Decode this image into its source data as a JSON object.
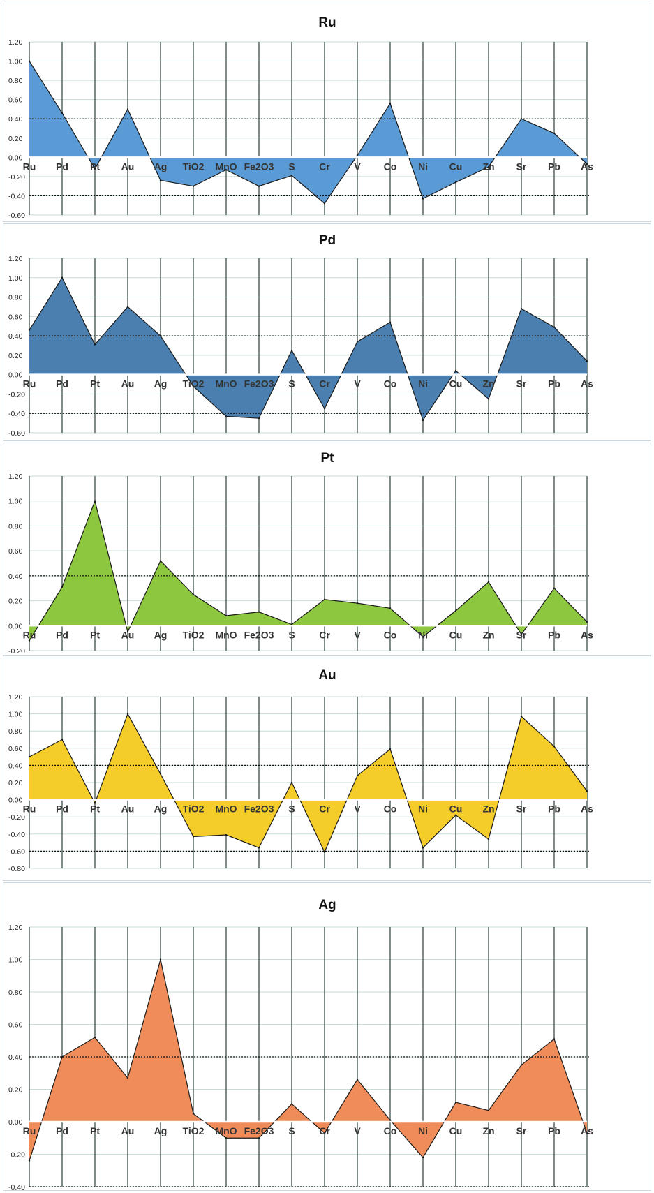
{
  "chart_data": [
    {
      "type": "area",
      "title": "Ru",
      "color": "#5b9bd5",
      "categories": [
        "Ru",
        "Pd",
        "Pt",
        "Au",
        "Ag",
        "TiO2",
        "MnO",
        "Fe2O3",
        "S",
        "Cr",
        "V",
        "Co",
        "Ni",
        "Cu",
        "Zn",
        "Sr",
        "Pb",
        "As"
      ],
      "values": [
        1.0,
        0.46,
        -0.12,
        0.5,
        -0.24,
        -0.3,
        -0.13,
        -0.3,
        -0.19,
        -0.48,
        0.02,
        0.56,
        -0.43,
        -0.26,
        -0.1,
        0.4,
        0.25,
        -0.07
      ],
      "ylim": [
        -0.6,
        1.2
      ],
      "yticks": [
        1.2,
        1.0,
        0.8,
        0.6,
        0.4,
        0.2,
        0.0,
        -0.2,
        -0.4,
        -0.6
      ],
      "ytick_labels": [
        "1.20",
        "1.00",
        "0.80",
        "0.60",
        "0.40",
        "0.20",
        "0.00",
        "-0.20",
        "-0.40",
        "-0.60"
      ],
      "thresholds": [
        0.4,
        -0.4
      ],
      "grid": true
    },
    {
      "type": "area",
      "title": "Pd",
      "color": "#4a7fb0",
      "categories": [
        "Ru",
        "Pd",
        "Pt",
        "Au",
        "Ag",
        "TiO2",
        "MnO",
        "Fe2O3",
        "S",
        "Cr",
        "V",
        "Co",
        "Ni",
        "Cu",
        "Zn",
        "Sr",
        "Pb",
        "As"
      ],
      "values": [
        0.46,
        1.0,
        0.31,
        0.7,
        0.4,
        -0.12,
        -0.43,
        -0.45,
        0.25,
        -0.35,
        0.34,
        0.54,
        -0.47,
        0.04,
        -0.25,
        0.68,
        0.49,
        0.14
      ],
      "ylim": [
        -0.6,
        1.2
      ],
      "yticks": [
        1.2,
        1.0,
        0.8,
        0.6,
        0.4,
        0.2,
        0.0,
        -0.2,
        -0.4,
        -0.6
      ],
      "ytick_labels": [
        "1.20",
        "1.00",
        "0.80",
        "0.60",
        "0.40",
        "0.20",
        "0.00",
        "-0.20",
        "-0.40",
        "-0.60"
      ],
      "thresholds": [
        0.4,
        -0.4
      ],
      "grid": true
    },
    {
      "type": "area",
      "title": "Pt",
      "color": "#8dc63f",
      "categories": [
        "Ru",
        "Pd",
        "Pt",
        "Au",
        "Ag",
        "TiO2",
        "MnO",
        "Fe2O3",
        "S",
        "Cr",
        "V",
        "Co",
        "Ni",
        "Cu",
        "Zn",
        "Sr",
        "Pb",
        "As"
      ],
      "values": [
        -0.12,
        0.31,
        1.0,
        -0.05,
        0.52,
        0.25,
        0.08,
        0.11,
        0.01,
        0.21,
        0.18,
        0.14,
        -0.09,
        0.12,
        0.35,
        -0.07,
        0.3,
        0.03
      ],
      "ylim": [
        -0.2,
        1.2
      ],
      "yticks": [
        1.2,
        1.0,
        0.8,
        0.6,
        0.4,
        0.2,
        0.0,
        -0.2
      ],
      "ytick_labels": [
        "1.20",
        "1.00",
        "0.80",
        "0.60",
        "0.40",
        "0.20",
        "0.00",
        "-0.20"
      ],
      "thresholds": [
        0.4
      ],
      "grid": true
    },
    {
      "type": "area",
      "title": "Au",
      "color": "#f5cd2a",
      "categories": [
        "Ru",
        "Pd",
        "Pt",
        "Au",
        "Ag",
        "TiO2",
        "MnO",
        "Fe2O3",
        "S",
        "Cr",
        "V",
        "Co",
        "Ni",
        "Cu",
        "Zn",
        "Sr",
        "Pb",
        "As"
      ],
      "values": [
        0.5,
        0.7,
        -0.04,
        1.0,
        0.3,
        -0.43,
        -0.41,
        -0.56,
        0.2,
        -0.61,
        0.28,
        0.59,
        -0.56,
        -0.18,
        -0.46,
        0.97,
        0.62,
        0.1
      ],
      "ylim": [
        -0.8,
        1.2
      ],
      "yticks": [
        1.2,
        1.0,
        0.8,
        0.6,
        0.4,
        0.2,
        0.0,
        -0.2,
        -0.4,
        -0.6,
        -0.8
      ],
      "ytick_labels": [
        "1.20",
        "1.00",
        "0.80",
        "0.60",
        "0.40",
        "0.20",
        "0.00",
        "-0.20",
        "-0.40",
        "-0.60",
        "-0.80"
      ],
      "thresholds": [
        0.4,
        -0.6
      ],
      "grid": true
    },
    {
      "type": "area",
      "title": "Ag",
      "color": "#f08c5a",
      "categories": [
        "Ru",
        "Pd",
        "Pt",
        "Au",
        "Ag",
        "TiO2",
        "MnO",
        "Fe2O3",
        "S",
        "Cr",
        "V",
        "Co",
        "Ni",
        "Cu",
        "Zn",
        "Sr",
        "Pb",
        "As"
      ],
      "values": [
        -0.24,
        0.4,
        0.52,
        0.27,
        1.0,
        0.05,
        -0.1,
        -0.1,
        0.11,
        -0.07,
        0.26,
        0.01,
        -0.22,
        0.12,
        0.07,
        0.35,
        0.51,
        -0.07
      ],
      "ylim": [
        -0.4,
        1.2
      ],
      "yticks": [
        1.2,
        1.0,
        0.8,
        0.6,
        0.4,
        0.2,
        0.0,
        -0.2,
        -0.4
      ],
      "ytick_labels": [
        "1.20",
        "1.00",
        "0.80",
        "0.60",
        "0.40",
        "0.20",
        "0.00",
        "-0.20",
        "-0.40"
      ],
      "thresholds": [
        0.4,
        -0.4
      ],
      "grid": true
    }
  ]
}
